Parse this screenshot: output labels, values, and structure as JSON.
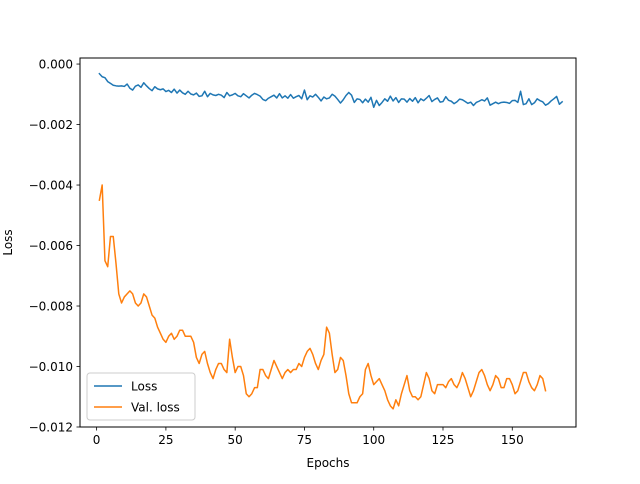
{
  "chart_data": {
    "type": "line",
    "title": "",
    "xlabel": "Epochs",
    "ylabel": "Loss",
    "xlim": [
      -6,
      173
    ],
    "ylim": [
      -0.012,
      0.0002
    ],
    "xticks": [
      0,
      25,
      50,
      75,
      100,
      125,
      150
    ],
    "xtick_labels": [
      "0",
      "25",
      "50",
      "75",
      "100",
      "125",
      "150"
    ],
    "yticks": [
      0.0,
      -0.002,
      -0.004,
      -0.006,
      -0.008,
      -0.01,
      -0.012
    ],
    "ytick_labels": [
      "0.000",
      "−0.002",
      "−0.004",
      "−0.006",
      "−0.008",
      "−0.010",
      "−0.012"
    ],
    "grid": false,
    "legend_position": "lower-left",
    "series": [
      {
        "name": "Loss",
        "color": "#1f77b4",
        "x_start": 1,
        "values": [
          -0.00032,
          -0.00042,
          -0.00045,
          -0.00058,
          -0.00064,
          -0.0007,
          -0.00072,
          -0.00073,
          -0.00072,
          -0.00074,
          -0.00066,
          -0.0008,
          -0.00086,
          -0.00073,
          -0.00069,
          -0.00077,
          -0.00062,
          -0.00072,
          -0.00081,
          -0.00088,
          -0.00075,
          -0.00082,
          -0.00085,
          -0.00082,
          -0.00091,
          -0.00087,
          -0.00094,
          -0.00083,
          -0.00096,
          -0.00086,
          -0.00095,
          -0.001,
          -0.0009,
          -0.00099,
          -0.00102,
          -0.00096,
          -0.00107,
          -0.00105,
          -0.0009,
          -0.00108,
          -0.00097,
          -0.00102,
          -0.00104,
          -0.001,
          -0.00103,
          -0.00111,
          -0.00094,
          -0.00105,
          -0.00102,
          -0.00097,
          -0.00105,
          -0.00108,
          -0.00098,
          -0.00105,
          -0.00112,
          -0.00103,
          -0.00097,
          -0.00101,
          -0.00106,
          -0.00117,
          -0.00121,
          -0.00113,
          -0.00108,
          -0.00103,
          -0.00112,
          -0.00098,
          -0.00112,
          -0.00105,
          -0.00113,
          -0.00101,
          -0.00113,
          -0.00108,
          -0.00104,
          -0.00115,
          -0.00086,
          -0.00118,
          -0.00105,
          -0.00109,
          -0.001,
          -0.0011,
          -0.00122,
          -0.00109,
          -0.00115,
          -0.00112,
          -0.001,
          -0.00106,
          -0.00117,
          -0.00129,
          -0.00118,
          -0.00104,
          -0.00094,
          -0.00103,
          -0.00127,
          -0.00115,
          -0.00117,
          -0.00128,
          -0.00116,
          -0.00126,
          -0.0011,
          -0.00143,
          -0.0012,
          -0.00137,
          -0.00127,
          -0.00115,
          -0.00123,
          -0.00106,
          -0.00122,
          -0.00111,
          -0.00127,
          -0.00115,
          -0.00116,
          -0.00126,
          -0.00114,
          -0.00123,
          -0.00111,
          -0.00128,
          -0.00115,
          -0.00121,
          -0.00113,
          -0.00104,
          -0.00124,
          -0.00117,
          -0.00112,
          -0.00126,
          -0.00124,
          -0.00108,
          -0.0012,
          -0.00123,
          -0.00131,
          -0.00125,
          -0.00116,
          -0.00118,
          -0.00124,
          -0.0013,
          -0.00126,
          -0.00137,
          -0.00127,
          -0.00123,
          -0.00118,
          -0.00122,
          -0.00112,
          -0.00136,
          -0.00131,
          -0.00126,
          -0.00131,
          -0.00127,
          -0.00126,
          -0.00127,
          -0.0013,
          -0.00121,
          -0.0012,
          -0.00127,
          -0.0009,
          -0.00134,
          -0.00131,
          -0.00115,
          -0.00134,
          -0.00128,
          -0.00115,
          -0.00121,
          -0.00125,
          -0.00136,
          -0.00131,
          -0.00122,
          -0.00115,
          -0.00107,
          -0.00133,
          -0.00125
        ]
      },
      {
        "name": "Val. loss",
        "color": "#ff7f0e",
        "x_start": 1,
        "values": [
          -0.0045,
          -0.004,
          -0.0065,
          -0.0067,
          -0.0057,
          -0.0057,
          -0.0066,
          -0.0076,
          -0.0079,
          -0.0077,
          -0.0076,
          -0.0075,
          -0.0076,
          -0.0079,
          -0.008,
          -0.0079,
          -0.0076,
          -0.0077,
          -0.008,
          -0.0083,
          -0.0084,
          -0.0087,
          -0.0089,
          -0.0091,
          -0.0092,
          -0.009,
          -0.0089,
          -0.0091,
          -0.009,
          -0.0088,
          -0.0088,
          -0.009,
          -0.009,
          -0.009,
          -0.0092,
          -0.0097,
          -0.0099,
          -0.0096,
          -0.0095,
          -0.0099,
          -0.0102,
          -0.0104,
          -0.0101,
          -0.0099,
          -0.0099,
          -0.0101,
          -0.0102,
          -0.0091,
          -0.0097,
          -0.0102,
          -0.01,
          -0.01,
          -0.0103,
          -0.0109,
          -0.011,
          -0.0109,
          -0.0107,
          -0.0107,
          -0.0101,
          -0.0101,
          -0.0103,
          -0.0104,
          -0.0101,
          -0.0098,
          -0.01,
          -0.0102,
          -0.0104,
          -0.0102,
          -0.0101,
          -0.0102,
          -0.0101,
          -0.0101,
          -0.0099,
          -0.01,
          -0.0097,
          -0.0095,
          -0.0094,
          -0.0096,
          -0.0099,
          -0.0101,
          -0.0098,
          -0.0096,
          -0.0087,
          -0.0089,
          -0.0096,
          -0.0102,
          -0.0101,
          -0.0097,
          -0.0098,
          -0.0103,
          -0.0109,
          -0.0112,
          -0.0112,
          -0.0112,
          -0.011,
          -0.0109,
          -0.0101,
          -0.0099,
          -0.0103,
          -0.0106,
          -0.0105,
          -0.0104,
          -0.0106,
          -0.0108,
          -0.0111,
          -0.0113,
          -0.0114,
          -0.0111,
          -0.0113,
          -0.0109,
          -0.0106,
          -0.0103,
          -0.0108,
          -0.011,
          -0.011,
          -0.0111,
          -0.011,
          -0.0106,
          -0.0102,
          -0.0104,
          -0.0108,
          -0.0109,
          -0.0106,
          -0.0106,
          -0.0106,
          -0.0107,
          -0.0105,
          -0.0104,
          -0.0106,
          -0.0107,
          -0.0105,
          -0.0102,
          -0.0104,
          -0.0107,
          -0.011,
          -0.0108,
          -0.0105,
          -0.0102,
          -0.0101,
          -0.0103,
          -0.0106,
          -0.0108,
          -0.0106,
          -0.0103,
          -0.0104,
          -0.0107,
          -0.0107,
          -0.0104,
          -0.0104,
          -0.0106,
          -0.0109,
          -0.0108,
          -0.0105,
          -0.0102,
          -0.0102,
          -0.0105,
          -0.0107,
          -0.0108,
          -0.0106,
          -0.0103,
          -0.0104,
          -0.0108
        ]
      }
    ]
  }
}
